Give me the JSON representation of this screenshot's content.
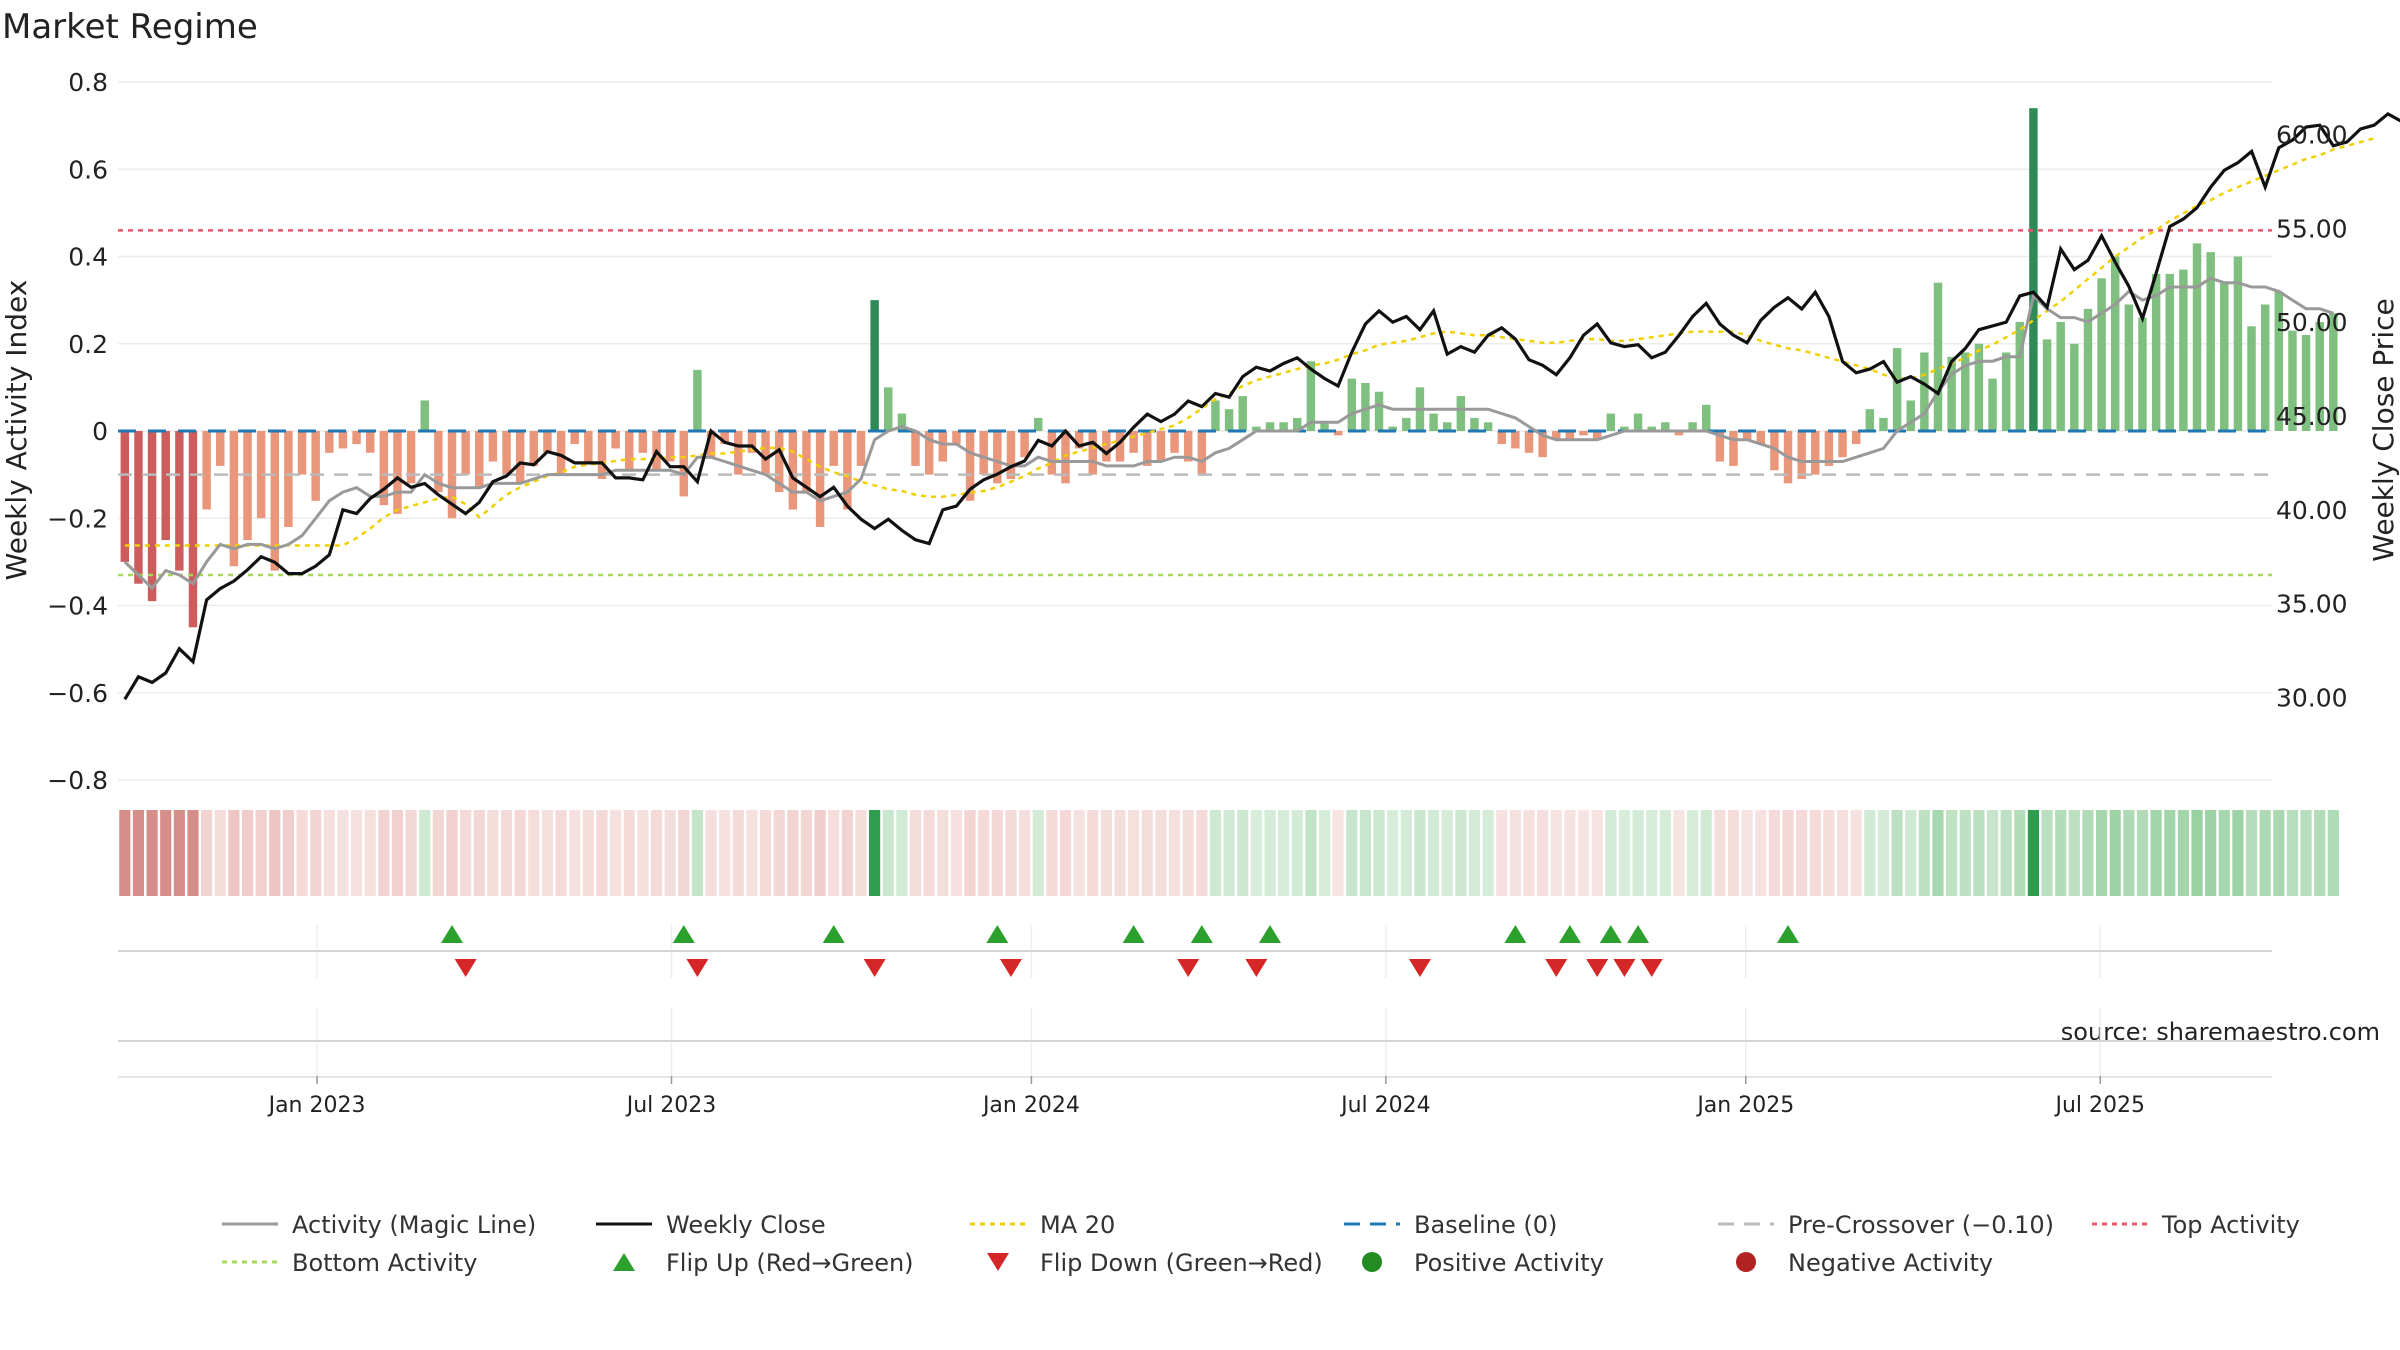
{
  "chart_data": {
    "type": "bar",
    "title": "Market Regime",
    "source": "source: sharemaestro.com",
    "ylabel_left": "Weekly Activity Index",
    "ylabel_right": "Weekly Close Price",
    "y_left_range": [
      -0.8,
      0.8
    ],
    "y_left_ticks": [
      "0.8",
      "0.6",
      "0.4",
      "0.2",
      "0",
      "−0.2",
      "−0.4",
      "−0.6",
      "−0.8"
    ],
    "y_right_range": [
      25.6,
      62.8
    ],
    "y_right_ticks": [
      "60.00",
      "55.00",
      "50.00",
      "45.00",
      "40.00",
      "35.00",
      "30.00"
    ],
    "x_ticks": [
      "Jan 2023",
      "Jul 2023",
      "Jan 2024",
      "Jul 2024",
      "Jan 2025",
      "Jul 2025"
    ],
    "x_tick_weeks": [
      14.6,
      40.6,
      67.0,
      93.0,
      119.4,
      145.4
    ],
    "num_weeks": 158,
    "top_activity_level": 0.46,
    "bottom_activity_level": -0.33,
    "pre_crossover_level": -0.1,
    "colors": {
      "strong_up": "#2e8b57",
      "weak_up": "#7fbf7f",
      "strong_down": "#cd5c5c",
      "weak_down": "#e9967a",
      "close": "#111111",
      "magic": "#999999",
      "ma20": "#f0d000",
      "baseline": "#1f77b4",
      "precross": "#bbbbbb",
      "top": "#e8566c",
      "bottom": "#a8d85a",
      "flip_up": "#2ca02c",
      "flip_down": "#d62728",
      "pos_dot": "#228b22",
      "neg_dot": "#b22222"
    },
    "activity": [
      -0.3,
      -0.35,
      -0.39,
      -0.25,
      -0.32,
      -0.45,
      -0.18,
      -0.08,
      -0.31,
      -0.25,
      -0.2,
      -0.32,
      -0.22,
      -0.1,
      -0.16,
      -0.05,
      -0.04,
      -0.03,
      -0.05,
      -0.17,
      -0.19,
      -0.12,
      0.07,
      -0.14,
      -0.2,
      -0.1,
      -0.13,
      -0.07,
      -0.1,
      -0.12,
      -0.08,
      -0.05,
      -0.1,
      -0.03,
      -0.07,
      -0.11,
      -0.04,
      -0.09,
      -0.05,
      -0.09,
      -0.07,
      -0.15,
      0.14,
      -0.06,
      -0.03,
      -0.1,
      -0.05,
      -0.1,
      -0.14,
      -0.18,
      -0.14,
      -0.22,
      -0.08,
      -0.18,
      -0.08,
      0.3,
      0.1,
      0.04,
      -0.08,
      -0.1,
      -0.07,
      -0.03,
      -0.16,
      -0.1,
      -0.12,
      -0.11,
      -0.06,
      0.03,
      -0.1,
      -0.12,
      -0.04,
      -0.1,
      -0.07,
      -0.07,
      -0.05,
      -0.08,
      -0.07,
      -0.05,
      -0.07,
      -0.1,
      0.07,
      0.05,
      0.08,
      0.01,
      0.02,
      0.02,
      0.03,
      0.16,
      0.02,
      -0.01,
      0.12,
      0.11,
      0.09,
      0.01,
      0.03,
      0.1,
      0.04,
      0.02,
      0.08,
      0.03,
      0.02,
      -0.03,
      -0.04,
      -0.05,
      -0.06,
      -0.02,
      -0.02,
      -0.01,
      -0.02,
      0.04,
      0.01,
      0.04,
      0.01,
      0.02,
      -0.01,
      0.02,
      0.06,
      -0.07,
      -0.08,
      -0.02,
      -0.03,
      -0.09,
      -0.12,
      -0.11,
      -0.1,
      -0.08,
      -0.06,
      -0.03,
      0.05,
      0.03,
      0.19,
      0.07,
      0.18,
      0.34,
      0.17,
      0.18,
      0.2,
      0.12,
      0.18,
      0.25,
      0.74,
      0.21,
      0.25,
      0.2,
      0.28,
      0.35,
      0.4,
      0.29,
      0.26,
      0.36,
      0.36,
      0.37,
      0.43,
      0.41,
      0.34,
      0.4,
      0.24,
      0.29,
      0.32,
      0.23,
      0.22,
      0.25,
      0.27
    ],
    "magic_line": [
      -0.3,
      -0.33,
      -0.36,
      -0.32,
      -0.33,
      -0.35,
      -0.3,
      -0.26,
      -0.27,
      -0.26,
      -0.26,
      -0.27,
      -0.26,
      -0.24,
      -0.2,
      -0.16,
      -0.14,
      -0.13,
      -0.15,
      -0.15,
      -0.14,
      -0.14,
      -0.1,
      -0.12,
      -0.13,
      -0.13,
      -0.13,
      -0.12,
      -0.12,
      -0.12,
      -0.11,
      -0.1,
      -0.1,
      -0.1,
      -0.1,
      -0.1,
      -0.09,
      -0.09,
      -0.09,
      -0.09,
      -0.09,
      -0.1,
      -0.06,
      -0.06,
      -0.07,
      -0.08,
      -0.09,
      -0.1,
      -0.12,
      -0.14,
      -0.14,
      -0.16,
      -0.15,
      -0.14,
      -0.11,
      -0.02,
      0.0,
      0.01,
      0.0,
      -0.02,
      -0.03,
      -0.03,
      -0.05,
      -0.06,
      -0.07,
      -0.08,
      -0.08,
      -0.06,
      -0.07,
      -0.07,
      -0.07,
      -0.07,
      -0.08,
      -0.08,
      -0.08,
      -0.07,
      -0.07,
      -0.06,
      -0.06,
      -0.07,
      -0.05,
      -0.04,
      -0.02,
      0.0,
      0.0,
      0.0,
      0.0,
      0.02,
      0.02,
      0.02,
      0.04,
      0.05,
      0.06,
      0.05,
      0.05,
      0.05,
      0.05,
      0.05,
      0.05,
      0.05,
      0.05,
      0.04,
      0.03,
      0.01,
      -0.01,
      -0.02,
      -0.02,
      -0.02,
      -0.02,
      -0.01,
      0.0,
      0.0,
      0.0,
      0.0,
      0.0,
      0.0,
      0.0,
      -0.01,
      -0.02,
      -0.02,
      -0.03,
      -0.04,
      -0.06,
      -0.07,
      -0.07,
      -0.07,
      -0.07,
      -0.06,
      -0.05,
      -0.04,
      0.0,
      0.02,
      0.04,
      0.09,
      0.13,
      0.15,
      0.16,
      0.16,
      0.17,
      0.17,
      0.31,
      0.28,
      0.26,
      0.26,
      0.25,
      0.27,
      0.29,
      0.32,
      0.3,
      0.31,
      0.33,
      0.33,
      0.33,
      0.35,
      0.34,
      0.34,
      0.33,
      0.33,
      0.32,
      0.3,
      0.28,
      0.28,
      0.27
    ],
    "close": [
      29.9,
      31.1,
      30.8,
      31.3,
      32.6,
      31.9,
      35.2,
      35.8,
      36.2,
      36.8,
      37.5,
      37.2,
      36.6,
      36.6,
      37.0,
      37.6,
      40.0,
      39.8,
      40.6,
      41.1,
      41.7,
      41.2,
      41.4,
      40.8,
      40.3,
      39.8,
      40.4,
      41.5,
      41.8,
      42.5,
      42.4,
      43.1,
      42.9,
      42.5,
      42.5,
      42.5,
      41.7,
      41.7,
      41.6,
      43.1,
      42.3,
      42.3,
      41.5,
      44.2,
      43.6,
      43.4,
      43.4,
      42.7,
      43.2,
      41.7,
      41.2,
      40.7,
      41.2,
      40.2,
      39.5,
      39.0,
      39.5,
      38.9,
      38.4,
      38.2,
      40.0,
      40.2,
      41.1,
      41.6,
      41.9,
      42.3,
      42.6,
      43.7,
      43.4,
      44.2,
      43.4,
      43.6,
      43.0,
      43.6,
      44.4,
      45.1,
      44.7,
      45.1,
      45.8,
      45.5,
      46.2,
      46.0,
      47.1,
      47.6,
      47.4,
      47.8,
      48.1,
      47.5,
      47.0,
      46.6,
      48.4,
      49.9,
      50.6,
      50.0,
      50.3,
      49.6,
      50.6,
      48.3,
      48.7,
      48.4,
      49.3,
      49.7,
      49.1,
      48.0,
      47.7,
      47.2,
      48.1,
      49.3,
      49.9,
      48.9,
      48.7,
      48.8,
      48.1,
      48.4,
      49.3,
      50.3,
      51.0,
      49.9,
      49.3,
      48.9,
      50.1,
      50.8,
      51.3,
      50.7,
      51.6,
      50.3,
      47.9,
      47.3,
      47.5,
      47.9,
      46.8,
      47.1,
      46.7,
      46.2,
      47.9,
      48.6,
      49.6,
      49.8,
      50.0,
      51.4,
      51.6,
      50.8,
      53.9,
      52.8,
      53.3,
      54.6,
      53.2,
      51.9,
      50.2,
      52.6,
      55.1,
      55.5,
      56.1,
      57.2,
      58.1,
      58.5,
      59.1,
      57.2,
      59.3,
      59.7,
      60.4,
      60.5,
      59.4,
      59.6,
      60.3,
      60.5,
      61.1,
      60.7,
      60.5,
      60.3,
      61.1,
      61.4
    ],
    "ma20_close": [
      38.1,
      38.1,
      38.1,
      38.1,
      38.1,
      38.1,
      38.1,
      38.1,
      38.1,
      38.1,
      38.1,
      38.1,
      38.1,
      38.1,
      38.1,
      38.1,
      38.1,
      38.5,
      39.0,
      39.6,
      40.0,
      40.2,
      40.4,
      40.6,
      40.7,
      40.3,
      39.6,
      40.2,
      40.8,
      41.2,
      41.5,
      41.8,
      42.0,
      42.3,
      42.4,
      42.5,
      42.6,
      42.7,
      42.7,
      42.7,
      42.8,
      42.8,
      42.9,
      43.0,
      43.0,
      43.1,
      43.2,
      43.3,
      43.3,
      43.1,
      42.7,
      42.3,
      42.0,
      41.8,
      41.5,
      41.3,
      41.1,
      41.0,
      40.8,
      40.7,
      40.7,
      40.8,
      40.9,
      41.0,
      41.2,
      41.5,
      41.8,
      42.2,
      42.5,
      42.9,
      43.1,
      43.3,
      43.5,
      43.7,
      43.9,
      44.1,
      44.3,
      44.5,
      44.9,
      45.4,
      45.9,
      46.2,
      46.6,
      46.9,
      47.1,
      47.3,
      47.5,
      47.7,
      47.8,
      48.0,
      48.3,
      48.5,
      48.8,
      48.9,
      49.0,
      49.2,
      49.4,
      49.5,
      49.4,
      49.3,
      49.3,
      49.2,
      49.1,
      49.0,
      48.9,
      48.9,
      49.0,
      49.1,
      49.1,
      49.0,
      49.0,
      49.1,
      49.2,
      49.3,
      49.4,
      49.5,
      49.5,
      49.5,
      49.5,
      49.3,
      49.0,
      48.8,
      48.6,
      48.5,
      48.3,
      48.1,
      47.9,
      47.7,
      47.5,
      47.2,
      47.0,
      47.0,
      47.2,
      47.5,
      47.8,
      48.1,
      48.5,
      48.8,
      49.2,
      49.6,
      50.1,
      50.6,
      51.1,
      51.7,
      52.3,
      52.9,
      53.5,
      54.0,
      54.5,
      54.9,
      55.4,
      55.8,
      56.2,
      56.5,
      56.9,
      57.2,
      57.5,
      57.8,
      58.1,
      58.4,
      58.7,
      58.9,
      59.2,
      59.4,
      59.6,
      59.8
    ],
    "regime": [
      "SD",
      "SD",
      "SD",
      "SD",
      "SD",
      "SD",
      "WD",
      "WD",
      "WD",
      "WD",
      "WD",
      "WD",
      "WD",
      "WD",
      "WD",
      "WD",
      "WD",
      "WD",
      "WD",
      "WD",
      "WD",
      "WD",
      "WU",
      "WD",
      "WD",
      "WD",
      "WD",
      "WD",
      "WD",
      "WD",
      "WD",
      "WD",
      "WD",
      "WD",
      "WD",
      "WD",
      "WD",
      "WD",
      "WD",
      "WD",
      "WD",
      "WD",
      "WU",
      "WD",
      "WD",
      "WD",
      "WD",
      "WD",
      "WD",
      "WD",
      "WD",
      "WD",
      "WD",
      "WD",
      "WD",
      "SU",
      "WU",
      "WU",
      "WD",
      "WD",
      "WD",
      "WD",
      "WD",
      "WD",
      "WD",
      "WD",
      "WD",
      "WU",
      "WD",
      "WD",
      "WD",
      "WD",
      "WD",
      "WD",
      "WD",
      "WD",
      "WD",
      "WD",
      "WD",
      "WD",
      "WU",
      "WU",
      "WU",
      "WU",
      "WU",
      "WU",
      "WU",
      "WU",
      "WU",
      "WD",
      "WU",
      "WU",
      "WU",
      "WU",
      "WU",
      "WU",
      "WU",
      "WU",
      "WU",
      "WU",
      "WU",
      "WD",
      "WD",
      "WD",
      "WD",
      "WD",
      "WD",
      "WD",
      "WD",
      "WU",
      "WU",
      "WU",
      "WU",
      "WU",
      "WD",
      "WU",
      "WU",
      "WD",
      "WD",
      "WD",
      "WD",
      "WD",
      "WD",
      "WD",
      "WD",
      "WD",
      "WD",
      "WD",
      "WU",
      "WU",
      "WU",
      "WU",
      "WU",
      "WU",
      "WU",
      "WU",
      "WU",
      "WU",
      "WU",
      "WU",
      "SU",
      "WU",
      "WU",
      "WU",
      "WU",
      "WU",
      "WU",
      "WU",
      "WU",
      "WU",
      "WU",
      "WU",
      "WU",
      "WU",
      "WU",
      "WU",
      "WU",
      "WU",
      "WU",
      "WU",
      "WU",
      "WU",
      "WU"
    ],
    "flip_up_weeks": [
      24,
      41,
      52,
      64,
      74,
      79,
      84,
      102,
      106,
      109,
      111,
      122
    ],
    "flip_down_weeks": [
      25,
      42,
      55,
      65,
      78,
      83,
      95,
      105,
      108,
      110,
      112
    ],
    "legend": [
      {
        "label": "Activity (Magic Line)",
        "symbol": "line",
        "color": "#999999"
      },
      {
        "label": "Weekly Close",
        "symbol": "line",
        "color": "#111111"
      },
      {
        "label": "MA 20",
        "symbol": "dotted",
        "color": "#f0d000"
      },
      {
        "label": "Baseline (0)",
        "symbol": "dashed",
        "color": "#1f77b4"
      },
      {
        "label": "Pre-Crossover (−0.10)",
        "symbol": "dashed",
        "color": "#bbbbbb"
      },
      {
        "label": "Top Activity",
        "symbol": "dotted",
        "color": "#e8566c"
      },
      {
        "label": "Bottom Activity",
        "symbol": "dotted",
        "color": "#a8d85a"
      },
      {
        "label": "Flip Up (Red→Green)",
        "symbol": "triangle-up",
        "color": "#2ca02c"
      },
      {
        "label": "Flip Down (Green→Red)",
        "symbol": "triangle-down",
        "color": "#d62728"
      },
      {
        "label": "Positive Activity",
        "symbol": "circle",
        "color": "#228b22"
      },
      {
        "label": "Negative Activity",
        "symbol": "circle",
        "color": "#b22222"
      }
    ]
  }
}
